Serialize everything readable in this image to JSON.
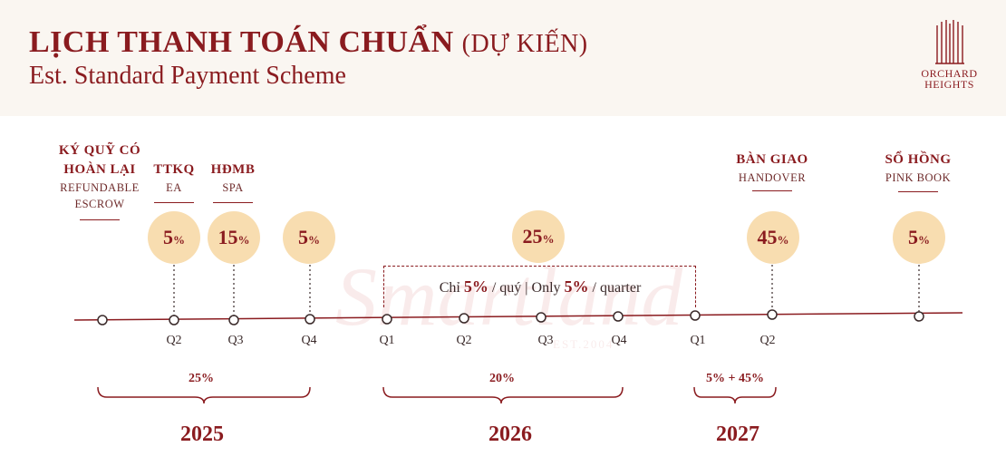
{
  "header": {
    "title": "LỊCH THANH TOÁN CHUẨN",
    "title_suffix": "(DỰ KIẾN)",
    "subtitle": "Est. Standard Payment Scheme",
    "brand_line1": "ORCHARD",
    "brand_line2": "HEIGHTS"
  },
  "watermark": {
    "text": "Smartland",
    "est": "EST.2004"
  },
  "milestones": {
    "escrow": {
      "title_line1": "KÝ QUỸ CÓ",
      "title_line2": "HOÀN LẠI",
      "sub_line1": "REFUNDABLE",
      "sub_line2": "ESCROW"
    },
    "ea": {
      "title": "TTKQ",
      "sub": "EA"
    },
    "spa": {
      "title": "HĐMB",
      "sub": "SPA"
    },
    "handover": {
      "title": "BÀN GIAO",
      "sub": "HANDOVER"
    },
    "pinkbook": {
      "title": "SỔ HỒNG",
      "sub": "PINK BOOK"
    }
  },
  "payments": [
    {
      "value": "5",
      "unit": "%"
    },
    {
      "value": "15",
      "unit": "%"
    },
    {
      "value": "5",
      "unit": "%"
    },
    {
      "value": "25",
      "unit": "%"
    },
    {
      "value": "45",
      "unit": "%"
    },
    {
      "value": "5",
      "unit": "%"
    }
  ],
  "quarterly_note": {
    "prefix": "Chỉ ",
    "pct1": "5%",
    "middle": " / quý | Only ",
    "pct2": "5%",
    "suffix": " / quarter"
  },
  "quarters": [
    "Q2",
    "Q3",
    "Q4",
    "Q1",
    "Q2",
    "Q3",
    "Q4",
    "Q1",
    "Q2"
  ],
  "year_groups": [
    {
      "year": "2025",
      "total": "25%"
    },
    {
      "year": "2026",
      "total": "20%"
    },
    {
      "year": "2027",
      "total": "5% + 45%"
    }
  ],
  "colors": {
    "brand": "#8a1b1f",
    "bubble": "#f8ddb0",
    "header_bg": "#faf6f1"
  }
}
